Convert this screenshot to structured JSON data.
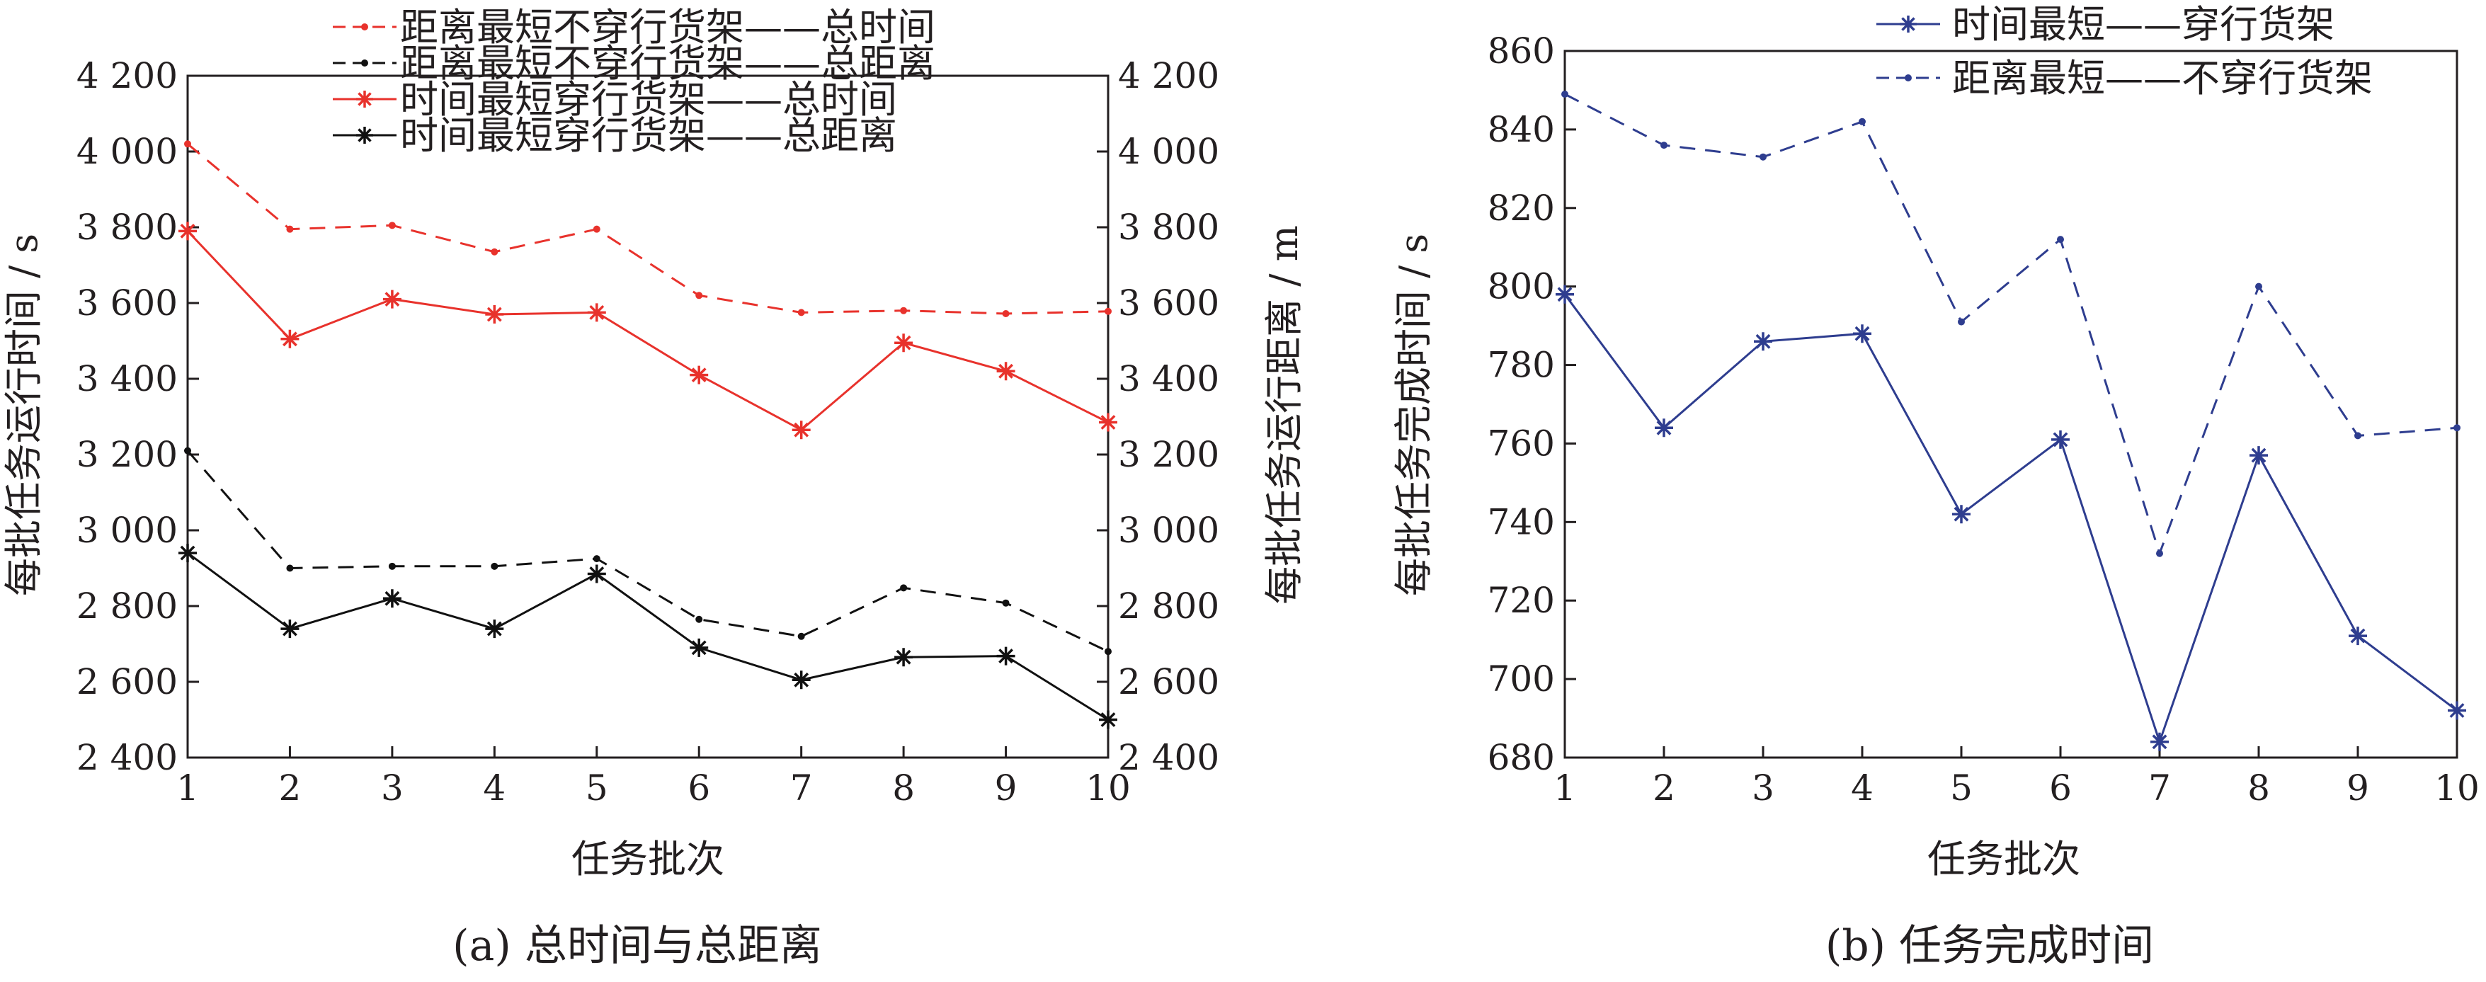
{
  "chart_data": [
    {
      "id": "a",
      "type": "line",
      "caption": "(a)  总时间与总距离",
      "xlabel": "任务批次",
      "ylabel": "每批任务运行时间 / s",
      "ylabel_right": "每批任务运行距离 / m",
      "x": [
        1,
        2,
        3,
        4,
        5,
        6,
        7,
        8,
        9,
        10
      ],
      "xticks": [
        "1",
        "2",
        "3",
        "4",
        "5",
        "6",
        "7",
        "8",
        "9",
        "10"
      ],
      "ylim": [
        2400,
        4200
      ],
      "yticks": [
        "2 400",
        "2 600",
        "2 800",
        "3 000",
        "3 200",
        "3 400",
        "3 600",
        "3 800",
        "4 000",
        "4 200"
      ],
      "yticks_right": [
        "2 400",
        "2 600",
        "2 800",
        "3 000",
        "3 200",
        "3 400",
        "3 600",
        "3 800",
        "4 000",
        "4 200"
      ],
      "grid": false,
      "legend_position": "top",
      "series": [
        {
          "name": "距离最短不穿行货架——总时间",
          "color": "#e8322c",
          "dash": "dashed",
          "marker": "dot",
          "values": [
            4020,
            3795,
            3805,
            3735,
            3795,
            3620,
            3575,
            3580,
            3572,
            3578
          ]
        },
        {
          "name": "距离最短不穿行货架——总距离",
          "color": "#111111",
          "dash": "dashed",
          "marker": "dot",
          "values": [
            3210,
            2900,
            2905,
            2905,
            2925,
            2765,
            2720,
            2848,
            2808,
            2680
          ]
        },
        {
          "name": "时间最短穿行货架——总时间",
          "color": "#e8322c",
          "dash": "solid",
          "marker": "star",
          "values": [
            3790,
            3505,
            3610,
            3570,
            3575,
            3410,
            3265,
            3495,
            3420,
            3285
          ]
        },
        {
          "name": "时间最短穿行货架——总距离",
          "color": "#111111",
          "dash": "solid",
          "marker": "star",
          "values": [
            2940,
            2740,
            2820,
            2740,
            2885,
            2690,
            2605,
            2665,
            2668,
            2500
          ]
        }
      ]
    },
    {
      "id": "b",
      "type": "line",
      "caption": "(b)  任务完成时间",
      "xlabel": "任务批次",
      "ylabel": "每批任务完成时间 / s",
      "x": [
        1,
        2,
        3,
        4,
        5,
        6,
        7,
        8,
        9,
        10
      ],
      "xticks": [
        "1",
        "2",
        "3",
        "4",
        "5",
        "6",
        "7",
        "8",
        "9",
        "10"
      ],
      "ylim": [
        680,
        860
      ],
      "yticks": [
        "680",
        "700",
        "720",
        "740",
        "760",
        "780",
        "800",
        "820",
        "840",
        "860"
      ],
      "grid": false,
      "legend_position": "top-right",
      "series": [
        {
          "name": "时间最短——穿行货架",
          "color": "#2e3d8f",
          "dash": "solid",
          "marker": "star",
          "values": [
            798,
            764,
            786,
            788,
            742,
            761,
            684,
            757,
            711,
            692
          ]
        },
        {
          "name": "距离最短——不穿行货架",
          "color": "#2e3d8f",
          "dash": "dashed",
          "marker": "dot",
          "values": [
            849,
            836,
            833,
            842,
            791,
            812,
            732,
            800,
            762,
            764
          ]
        }
      ]
    }
  ]
}
